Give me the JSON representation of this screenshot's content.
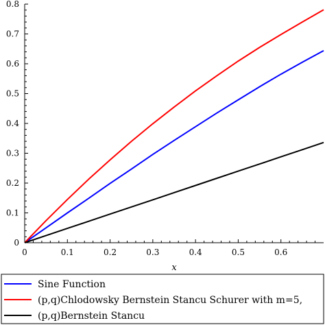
{
  "chart_data": {
    "type": "line",
    "title": "",
    "xlabel": "x",
    "ylabel": "",
    "xlim": [
      0,
      0.7
    ],
    "ylim": [
      0,
      0.8
    ],
    "x_ticks": [
      "0",
      "0.1",
      "0.2",
      "0.3",
      "0.4",
      "0.5",
      "0.6"
    ],
    "y_ticks": [
      "0",
      "0.1",
      "0.2",
      "0.3",
      "0.4",
      "0.5",
      "0.6",
      "0.7",
      "0.8"
    ],
    "grid": false,
    "legend_placement": "bottom",
    "x": [
      0,
      0.05,
      0.1,
      0.15,
      0.2,
      0.25,
      0.3,
      0.35,
      0.4,
      0.45,
      0.5,
      0.55,
      0.6,
      0.65,
      0.7
    ],
    "series": [
      {
        "name": "Sine Function",
        "color": "#0000ff",
        "values": [
          0,
          0.05,
          0.1,
          0.149,
          0.199,
          0.247,
          0.296,
          0.343,
          0.389,
          0.435,
          0.479,
          0.523,
          0.565,
          0.605,
          0.644
        ]
      },
      {
        "name": "(p,q)Chlodowsky Bernstein Stancu Schurer with m=5,",
        "color": "#ff0000",
        "values": [
          0,
          0.074,
          0.145,
          0.213,
          0.278,
          0.34,
          0.399,
          0.455,
          0.509,
          0.56,
          0.609,
          0.655,
          0.698,
          0.74,
          0.781
        ]
      },
      {
        "name": "(p,q)Bernstein Stancu",
        "color": "#000000",
        "values": [
          0,
          0.024,
          0.048,
          0.072,
          0.096,
          0.12,
          0.144,
          0.168,
          0.192,
          0.216,
          0.24,
          0.264,
          0.288,
          0.312,
          0.336
        ]
      }
    ]
  }
}
